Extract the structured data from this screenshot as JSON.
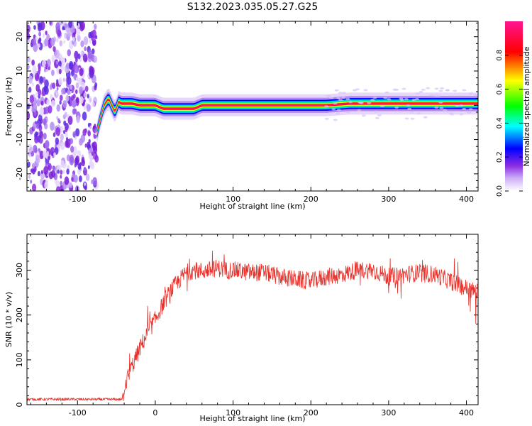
{
  "title": "S132.2023.035.05.27.G25",
  "chart_data": [
    {
      "type": "heatmap",
      "xlabel": "Height of straight line (km)",
      "ylabel": "Frequency (Hz)",
      "xlim": [
        -165,
        415
      ],
      "ylim": [
        -25,
        24.5
      ],
      "x_ticks": [
        "-100",
        "0",
        "100",
        "200",
        "300",
        "400"
      ],
      "y_ticks": [
        "-20",
        "-10",
        "0",
        "10",
        "20"
      ],
      "colorbar": {
        "label": "Normalized spectral amplitude",
        "range": [
          0,
          1
        ],
        "ticks": [
          "0.0",
          "0.2",
          "0.4",
          "0.6",
          "0.8"
        ],
        "colormap": [
          "#ffffff",
          "#8a2be2",
          "#0000ff",
          "#00ffff",
          "#00ff00",
          "#ffff00",
          "#ff0000",
          "#ff1493"
        ]
      },
      "ridge": {
        "x": [
          -75,
          -72,
          -66,
          -60,
          -56,
          -52,
          -47,
          -44,
          -40,
          -30,
          -20,
          -10,
          0,
          10,
          20,
          30,
          40,
          50,
          60,
          70,
          80,
          100,
          150,
          200,
          220,
          250,
          270,
          300,
          350,
          400,
          415
        ],
        "y": [
          -8,
          -5,
          0,
          2,
          0,
          -2,
          1,
          0.5,
          0.5,
          0.5,
          0,
          0,
          0,
          -1,
          -1,
          -1,
          -1,
          -1,
          0,
          0,
          0,
          0,
          0,
          0,
          0,
          0.5,
          0.5,
          0.5,
          0.5,
          0.5,
          0.5
        ]
      },
      "noise_region_x": [
        -165,
        -75
      ]
    },
    {
      "type": "line",
      "xlabel": "Height of straight line (km)",
      "ylabel": "SNR (10 * v/v)",
      "xlim": [
        -165,
        415
      ],
      "ylim": [
        0,
        380
      ],
      "x_ticks": [
        "-100",
        "0",
        "100",
        "200",
        "300",
        "400"
      ],
      "y_ticks": [
        "0",
        "100",
        "200",
        "300"
      ],
      "color": "#e8302a",
      "envelope": {
        "x": [
          -165,
          -42,
          -40,
          -30,
          -20,
          -10,
          0,
          10,
          20,
          30,
          40,
          50,
          60,
          70,
          80,
          90,
          100,
          120,
          140,
          160,
          180,
          200,
          220,
          240,
          260,
          280,
          300,
          320,
          340,
          360,
          380,
          400,
          415
        ],
        "y": [
          12,
          12,
          40,
          85,
          125,
          160,
          190,
          225,
          255,
          275,
          295,
          300,
          298,
          300,
          305,
          300,
          300,
          295,
          295,
          285,
          280,
          275,
          285,
          290,
          300,
          300,
          285,
          290,
          295,
          290,
          275,
          260,
          250
        ]
      }
    }
  ]
}
